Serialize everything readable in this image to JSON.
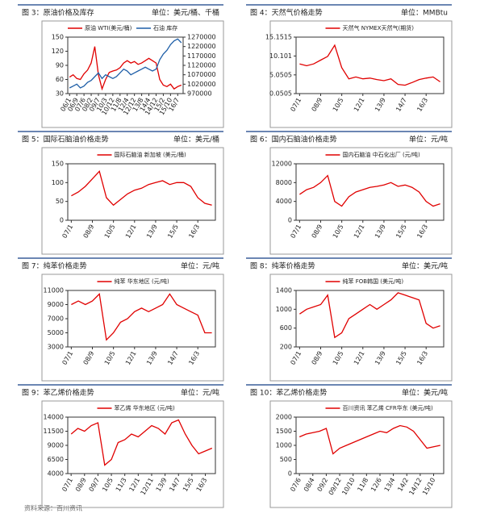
{
  "captions": [
    {
      "figure": "图 3：原油价格及库存",
      "unit": "单位：美元/桶、千桶"
    },
    {
      "figure": "图 4：天然气价格走势",
      "unit": "单位：MMBtu"
    },
    {
      "figure": "图 5：国际石脑油价格走势",
      "unit": "单位：美元/桶"
    },
    {
      "figure": "图 6：国内石脑油价格走势",
      "unit": "单位：元/吨"
    },
    {
      "figure": "图 7：纯苯价格走势",
      "unit": "单位：元/吨"
    },
    {
      "figure": "图 8：纯苯价格走势",
      "unit": "单位：美元/吨"
    },
    {
      "figure": "图 9：苯乙烯价格走势",
      "unit": "单位：元/吨"
    },
    {
      "figure": "图 10：苯乙烯价格走势",
      "unit": "单位：美元/吨"
    }
  ],
  "source": "资料来源：百川资讯",
  "chart_data": [
    {
      "type": "line",
      "categories": [
        "06/1",
        null,
        "06/9",
        null,
        "07/6",
        null,
        "08/2",
        null,
        "09/7",
        null,
        "10/3",
        null,
        "10/12",
        null,
        "11/8",
        null,
        "12/4",
        null,
        "12/12",
        null,
        "13/8",
        null,
        "14/4",
        null,
        "14/12",
        null,
        "15/2",
        null,
        "15/10",
        null,
        "16/7",
        null
      ],
      "ylim": [
        30,
        150
      ],
      "yticks": [
        30,
        60,
        90,
        120,
        150
      ],
      "y2lim": [
        970000,
        1270000
      ],
      "y2ticks": [
        970000,
        1020000,
        1070000,
        1120000,
        1170000,
        1220000,
        1270000
      ],
      "series": [
        {
          "name": "原油 WTI(美元/桶)",
          "color": "#e00000",
          "values": [
            65,
            70,
            62,
            60,
            72,
            80,
            95,
            130,
            70,
            40,
            60,
            75,
            78,
            80,
            85,
            95,
            100,
            95,
            98,
            92,
            95,
            100,
            105,
            100,
            95,
            60,
            48,
            45,
            50,
            40,
            45,
            48
          ]
        },
        {
          "name": "石油 库存",
          "color": "#1f5fa8",
          "axis": "y2",
          "values": [
            1000000,
            1010000,
            1020000,
            1000000,
            1010000,
            1030000,
            1040000,
            1060000,
            1080000,
            1050000,
            1070000,
            1060000,
            1050000,
            1060000,
            1080000,
            1100000,
            1090000,
            1070000,
            1080000,
            1090000,
            1100000,
            1110000,
            1100000,
            1090000,
            1100000,
            1150000,
            1180000,
            1200000,
            1230000,
            1250000,
            1260000,
            1240000
          ]
        }
      ]
    },
    {
      "type": "line",
      "categories": [
        "07/1",
        null,
        null,
        "08/9",
        null,
        null,
        "10/5",
        null,
        null,
        "12/1",
        null,
        null,
        "13/9",
        null,
        null,
        "14/7",
        null,
        null,
        "16/3",
        null,
        null
      ],
      "ylim": [
        0.0505,
        15.1515
      ],
      "yticks": [
        0.0505,
        5.0505,
        10.101,
        15.1515
      ],
      "series": [
        {
          "name": "天然气 NYMEX天然气(期货)",
          "color": "#e00000",
          "values": [
            8,
            7.5,
            8,
            9,
            10,
            13,
            7,
            4,
            4.5,
            4,
            4.2,
            3.8,
            3.5,
            4,
            2.5,
            2.3,
            3,
            3.8,
            4.2,
            4.5,
            3.2
          ]
        }
      ]
    },
    {
      "type": "line",
      "categories": [
        "07/1",
        null,
        null,
        "08/9",
        null,
        null,
        "10/5",
        null,
        null,
        "12/1",
        null,
        null,
        "13/9",
        null,
        null,
        "15/5",
        null,
        null,
        "16/3",
        null,
        null
      ],
      "ylim": [
        0,
        150
      ],
      "yticks": [
        0,
        50,
        100,
        150
      ],
      "series": [
        {
          "name": "国际石脑油 新加坡 (美元/桶)",
          "color": "#e00000",
          "values": [
            65,
            75,
            90,
            110,
            130,
            60,
            40,
            55,
            70,
            80,
            85,
            95,
            100,
            105,
            95,
            100,
            100,
            90,
            60,
            45,
            40
          ]
        }
      ]
    },
    {
      "type": "line",
      "categories": [
        "07/1",
        null,
        null,
        "08/9",
        null,
        null,
        "10/5",
        null,
        null,
        "12/1",
        null,
        null,
        "13/9",
        null,
        null,
        "15/5",
        null,
        null,
        "16/3",
        null,
        null
      ],
      "ylim": [
        0,
        12000
      ],
      "yticks": [
        0,
        4000,
        8000,
        12000
      ],
      "series": [
        {
          "name": "国内石脑油 中石化出厂 (元/吨)",
          "color": "#e00000",
          "values": [
            5500,
            6500,
            7000,
            8000,
            9500,
            4000,
            3000,
            5000,
            6000,
            6500,
            7000,
            7200,
            7500,
            8000,
            7200,
            7500,
            7000,
            6000,
            4000,
            3000,
            3500
          ]
        }
      ]
    },
    {
      "type": "line",
      "categories": [
        "07/1",
        null,
        null,
        "08/9",
        null,
        null,
        "10/5",
        null,
        null,
        "12/1",
        null,
        null,
        "13/9",
        null,
        null,
        "14/7",
        null,
        null,
        "16/3",
        null,
        null
      ],
      "ylim": [
        3000,
        11000
      ],
      "yticks": [
        3000,
        5000,
        7000,
        9000,
        11000
      ],
      "series": [
        {
          "name": "纯苯 华东地区 (元/吨)",
          "color": "#e00000",
          "values": [
            9000,
            9500,
            9000,
            9500,
            10500,
            4000,
            5000,
            6500,
            7000,
            8000,
            8500,
            8000,
            8500,
            9000,
            10500,
            9000,
            8500,
            8000,
            7500,
            5000,
            5000
          ]
        }
      ]
    },
    {
      "type": "line",
      "categories": [
        "07/1",
        null,
        null,
        "08/9",
        null,
        null,
        "10/5",
        null,
        null,
        "12/1",
        null,
        null,
        "13/9",
        null,
        null,
        "15/5",
        null,
        null,
        "16/3",
        null,
        null
      ],
      "ylim": [
        200,
        1400
      ],
      "yticks": [
        200,
        600,
        1000,
        1400
      ],
      "series": [
        {
          "name": "纯苯 FOB韩国 (美元/吨)",
          "color": "#e00000",
          "values": [
            900,
            1000,
            1050,
            1100,
            1300,
            400,
            500,
            800,
            900,
            1000,
            1100,
            1000,
            1100,
            1200,
            1350,
            1300,
            1250,
            1200,
            700,
            600,
            650
          ]
        }
      ]
    },
    {
      "type": "line",
      "categories": [
        "07/1",
        null,
        "08/9",
        null,
        "09/7",
        null,
        "10/5",
        null,
        "11/3",
        null,
        "12/1",
        null,
        "12/11",
        null,
        "13/9",
        null,
        "14/7",
        null,
        "15/5",
        null,
        "16/3",
        null
      ],
      "ylim": [
        4000,
        14000
      ],
      "yticks": [
        4000,
        6500,
        9000,
        11500,
        14000
      ],
      "series": [
        {
          "name": "苯乙烯 华东地区 (元/吨)",
          "color": "#e00000",
          "values": [
            11000,
            12000,
            11500,
            12500,
            13000,
            5500,
            6500,
            9500,
            10000,
            11000,
            10500,
            11500,
            12500,
            12000,
            11000,
            13000,
            13500,
            11000,
            9000,
            7500,
            8000,
            8500
          ]
        }
      ]
    },
    {
      "type": "line",
      "categories": [
        "07/6",
        null,
        "08/4",
        null,
        "09/2",
        null,
        "09/12",
        null,
        "10/10",
        null,
        "11/8",
        null,
        "12/6",
        null,
        "13/4",
        null,
        "14/2",
        null,
        "14/12",
        null,
        "15/10",
        null
      ],
      "ylim": [
        0,
        2000
      ],
      "yticks": [
        0,
        500,
        1000,
        1500,
        2000
      ],
      "series": [
        {
          "name": "百川资讯 苯乙烯 CFR华东 (美元/吨)",
          "color": "#e00000",
          "values": [
            1300,
            1400,
            1450,
            1500,
            1600,
            700,
            900,
            1000,
            1100,
            1200,
            1300,
            1400,
            1500,
            1450,
            1600,
            1700,
            1650,
            1500,
            1200,
            900,
            950,
            1000
          ]
        }
      ]
    }
  ]
}
